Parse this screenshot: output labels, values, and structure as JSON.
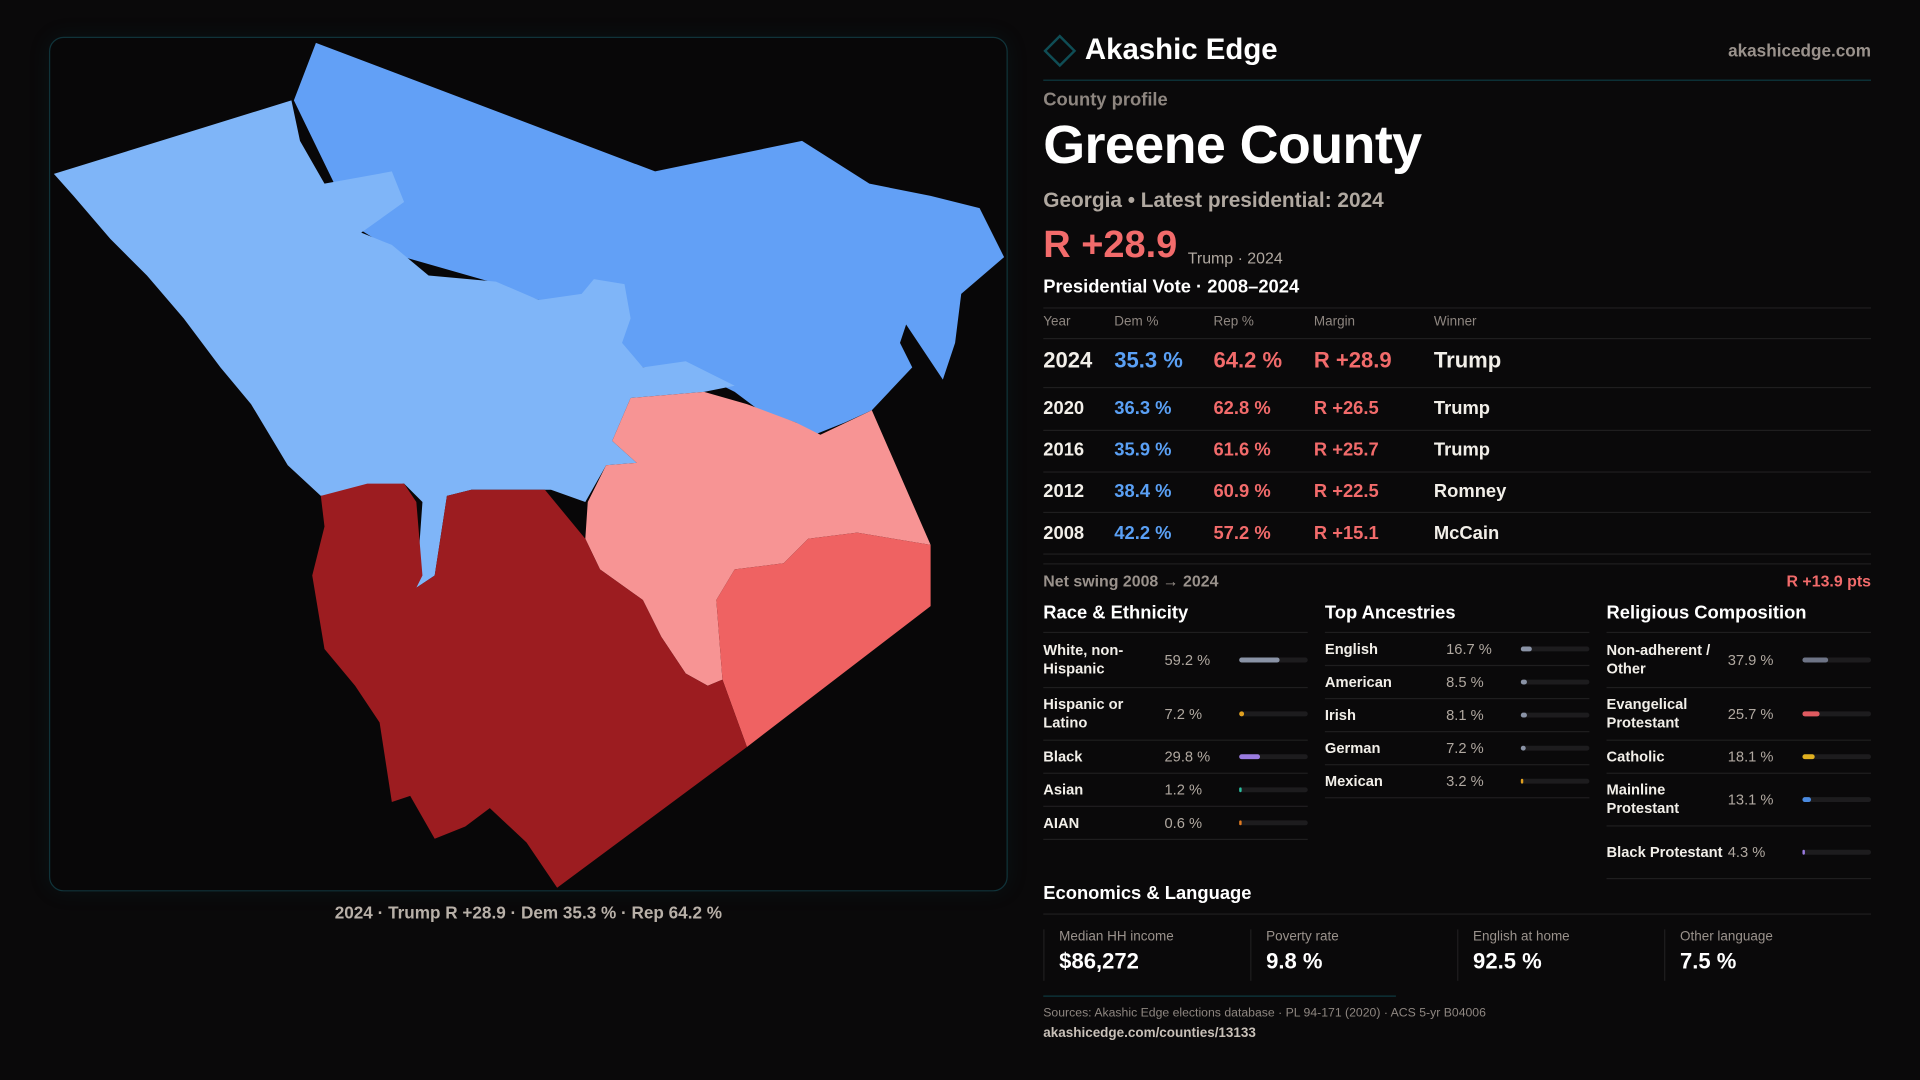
{
  "map": {
    "caption": "2024 · Trump R +28.9 · Dem 35.3 % · Rep 64.2 %",
    "colors": {
      "safe_dem_light": "#7fb5f8",
      "dem": "#62a0f6",
      "lean_rep": "#f79494",
      "rep": "#ef6262",
      "safe_rep": "#9c1c20"
    }
  },
  "header": {
    "brand": "Akashic Edge",
    "domain": "akashicedge.com",
    "logo_icon": "diamond-icon"
  },
  "profile": {
    "eyebrow": "County profile",
    "title": "Greene County",
    "subtitle": "Georgia • Latest presidential: 2024",
    "margin": "R +28.9",
    "margin_note": "Trump · 2024"
  },
  "vote": {
    "title": "Presidential Vote · 2008–2024",
    "columns": [
      "Year",
      "Dem %",
      "Rep %",
      "Margin",
      "Winner"
    ],
    "rows": [
      [
        "2024",
        "35.3 %",
        "64.2 %",
        "R +28.9",
        "Trump"
      ],
      [
        "2020",
        "36.3 %",
        "62.8 %",
        "R +26.5",
        "Trump"
      ],
      [
        "2016",
        "35.9 %",
        "61.6 %",
        "R +25.7",
        "Trump"
      ],
      [
        "2012",
        "38.4 %",
        "60.9 %",
        "R +22.5",
        "Romney"
      ],
      [
        "2008",
        "42.2 %",
        "57.2 %",
        "R +15.1",
        "McCain"
      ]
    ],
    "swing_label": "Net swing 2008 → 2024",
    "swing_value": "R +13.9 pts"
  },
  "race": {
    "title": "Race & Ethnicity",
    "items": [
      {
        "label": "White, non-Hispanic",
        "value": "59.2 %",
        "pct": 59.2,
        "color": "#8a93a6"
      },
      {
        "label": "Hispanic or Latino",
        "value": "7.2 %",
        "pct": 7.2,
        "color": "#e0a020"
      },
      {
        "label": "Black",
        "value": "29.8 %",
        "pct": 29.8,
        "color": "#9a7be0"
      },
      {
        "label": "Asian",
        "value": "1.2 %",
        "pct": 1.2,
        "color": "#2bbfa0"
      },
      {
        "label": "AIAN",
        "value": "0.6 %",
        "pct": 0.6,
        "color": "#e07a20"
      }
    ]
  },
  "ancestry": {
    "title": "Top Ancestries",
    "items": [
      {
        "label": "English",
        "value": "16.7 %",
        "pct": 16.7,
        "color": "#8a93a6"
      },
      {
        "label": "American",
        "value": "8.5 %",
        "pct": 8.5,
        "color": "#8a93a6"
      },
      {
        "label": "Irish",
        "value": "8.1 %",
        "pct": 8.1,
        "color": "#8a93a6"
      },
      {
        "label": "German",
        "value": "7.2 %",
        "pct": 7.2,
        "color": "#8a93a6"
      },
      {
        "label": "Mexican",
        "value": "3.2 %",
        "pct": 3.2,
        "color": "#e0a020"
      }
    ]
  },
  "religion": {
    "title": "Religious Composition",
    "items": [
      {
        "label": "Non-adherent / Other",
        "value": "37.9 %",
        "pct": 37.9,
        "color": "#6e7486"
      },
      {
        "label": "Evangelical Protestant",
        "value": "25.7 %",
        "pct": 25.7,
        "color": "#e05a60"
      },
      {
        "label": "Catholic",
        "value": "18.1 %",
        "pct": 18.1,
        "color": "#e0b020"
      },
      {
        "label": "Mainline Protestant",
        "value": "13.1 %",
        "pct": 13.1,
        "color": "#4a8ae0"
      },
      {
        "label": "Black Protestant",
        "value": "4.3 %",
        "pct": 4.3,
        "color": "#9a7be0"
      }
    ]
  },
  "economics": {
    "title": "Economics & Language",
    "cards": [
      {
        "label": "Median HH income",
        "value": "$86,272"
      },
      {
        "label": "Poverty rate",
        "value": "9.8 %"
      },
      {
        "label": "English at home",
        "value": "92.5 %"
      },
      {
        "label": "Other language",
        "value": "7.5 %"
      }
    ]
  },
  "footer": {
    "sources": "Sources: Akashic Edge elections database · PL 94-171 (2020) · ACS 5-yr B04006",
    "url": "akashicedge.com/counties/13133"
  }
}
